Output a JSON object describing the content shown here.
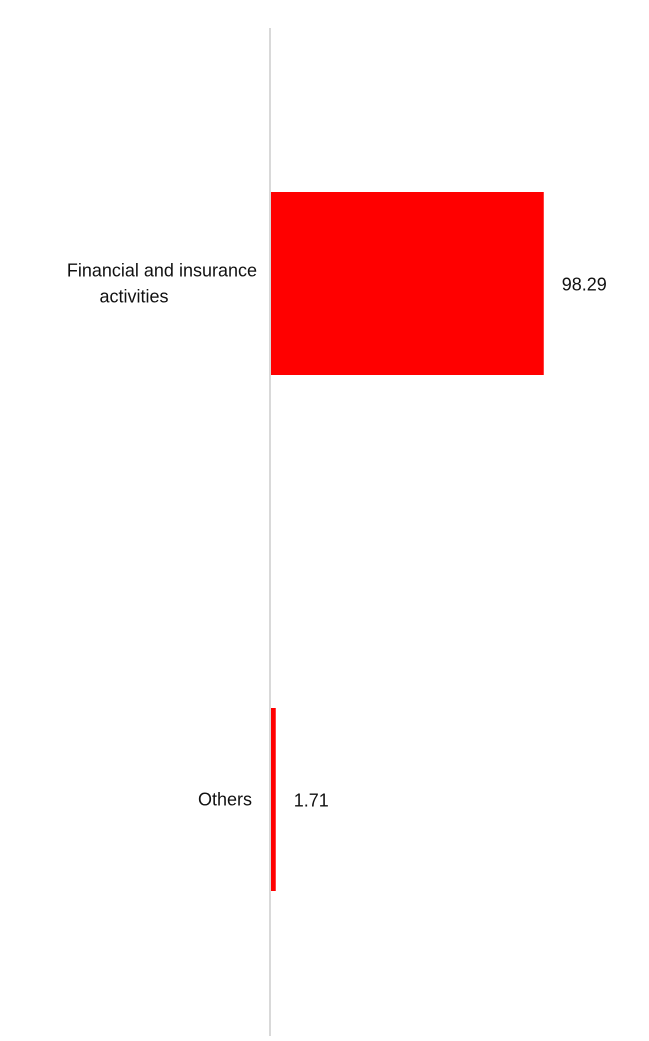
{
  "colors": {
    "bar": "#ff0000",
    "axis": "#d9d9d9",
    "text": "#111111",
    "background": "#ffffff"
  },
  "chart_data": {
    "type": "bar",
    "orientation": "horizontal",
    "categories": [
      "Financial and insurance activities",
      "Others"
    ],
    "category_label_lines": [
      [
        "Financial and insurance",
        "activities"
      ],
      [
        "Others"
      ]
    ],
    "values": [
      98.29,
      1.71
    ],
    "value_labels": [
      "98.29",
      "1.71"
    ],
    "xlim": [
      0,
      100
    ],
    "title": "",
    "xlabel": "",
    "ylabel": "",
    "grid": false,
    "legend": "none"
  }
}
